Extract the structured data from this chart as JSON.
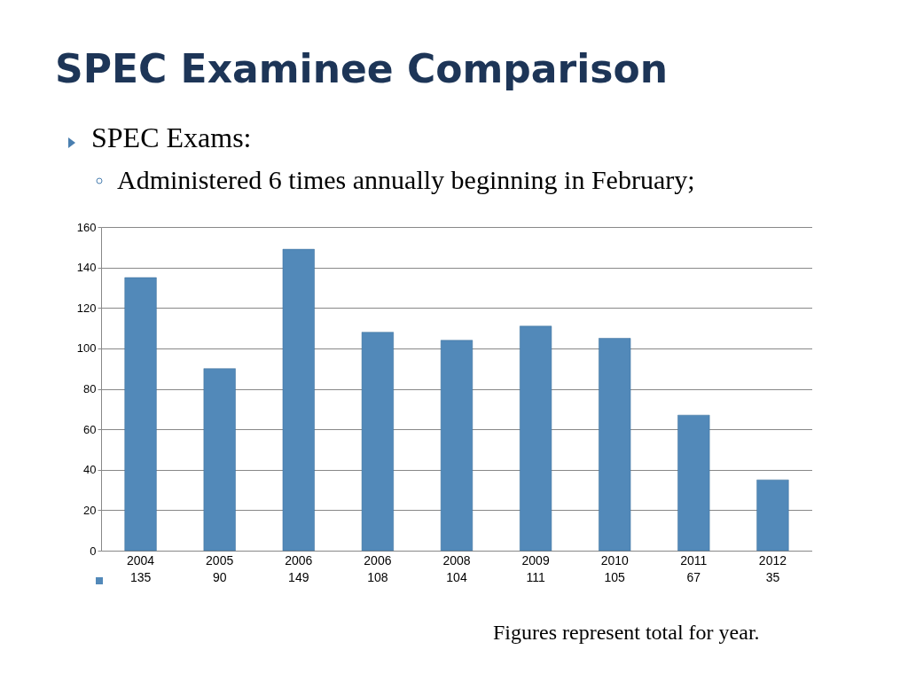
{
  "chart_data": {
    "type": "bar",
    "title": "SPEC Examinee Comparison",
    "subtitle": "SPEC Exams:",
    "annotations": [
      "Administered 6 times annually beginning in February;",
      "Figures represent total for year."
    ],
    "categories": [
      "2004",
      "2005",
      "2006",
      "2006",
      "2008",
      "2009",
      "2010",
      "2011",
      "2012"
    ],
    "values": [
      135,
      90,
      149,
      108,
      104,
      111,
      105,
      67,
      35
    ],
    "color": "#5289b9",
    "ylim": [
      0,
      160
    ],
    "yticks": [
      0,
      20,
      40,
      60,
      80,
      100,
      120,
      140,
      160
    ],
    "grid": "y",
    "data_labels": true
  }
}
